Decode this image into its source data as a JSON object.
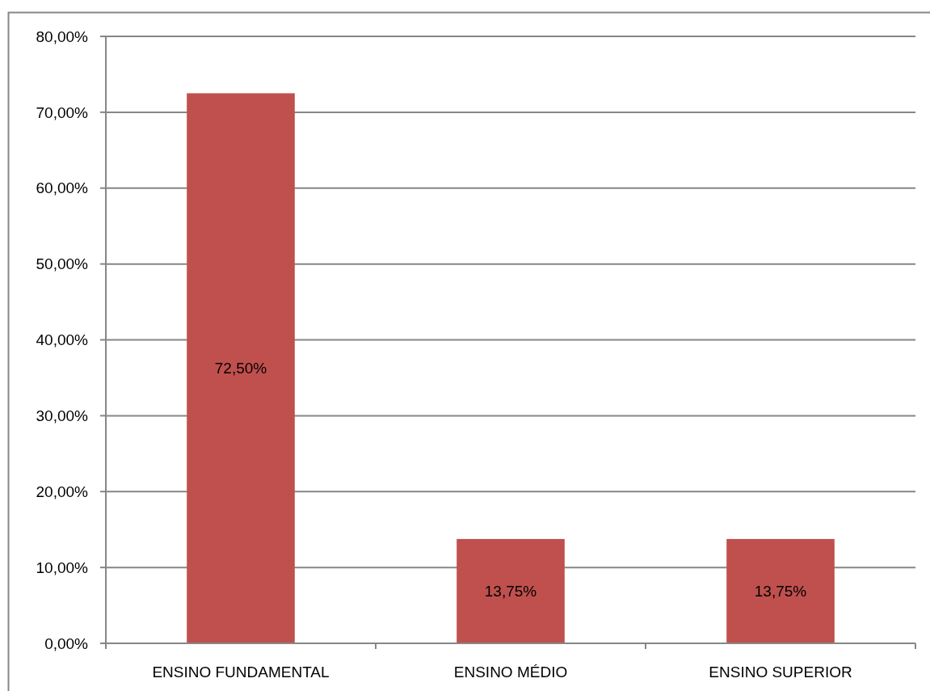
{
  "chart_data": {
    "type": "bar",
    "categories": [
      "ENSINO FUNDAMENTAL",
      "ENSINO MÉDIO",
      "ENSINO SUPERIOR"
    ],
    "values": [
      72.5,
      13.75,
      13.75
    ],
    "color": "#c0504d",
    "value_labels": [
      "72,50%",
      "13,75%",
      "13,75%"
    ],
    "ylim": [
      0,
      80
    ],
    "yticks": [
      {
        "value": 0,
        "label": "0,00%"
      },
      {
        "value": 10,
        "label": "10,00%"
      },
      {
        "value": 20,
        "label": "20,00%"
      },
      {
        "value": 30,
        "label": "30,00%"
      },
      {
        "value": 40,
        "label": "40,00%"
      },
      {
        "value": 50,
        "label": "50,00%"
      },
      {
        "value": 60,
        "label": "60,00%"
      },
      {
        "value": 70,
        "label": "70,00%"
      },
      {
        "value": 80,
        "label": "80,00%"
      }
    ],
    "grid": "y"
  }
}
